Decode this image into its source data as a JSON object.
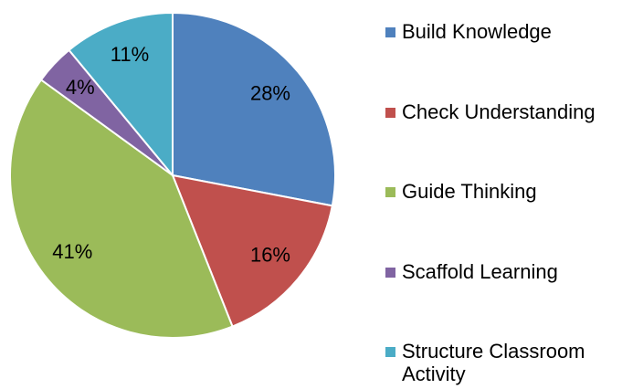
{
  "chart_data": {
    "type": "pie",
    "categories": [
      "Build Knowledge",
      "Check Understanding",
      "Guide Thinking",
      "Scaffold Learning",
      "Structure Classroom Activity"
    ],
    "values": [
      28,
      16,
      41,
      4,
      11
    ],
    "value_labels": [
      "28%",
      "16%",
      "41%",
      "4%",
      "11%"
    ],
    "colors": [
      "#4f81bd",
      "#c0504d",
      "#9bbb59",
      "#8064a2",
      "#4bacc6"
    ],
    "legend": "right"
  }
}
